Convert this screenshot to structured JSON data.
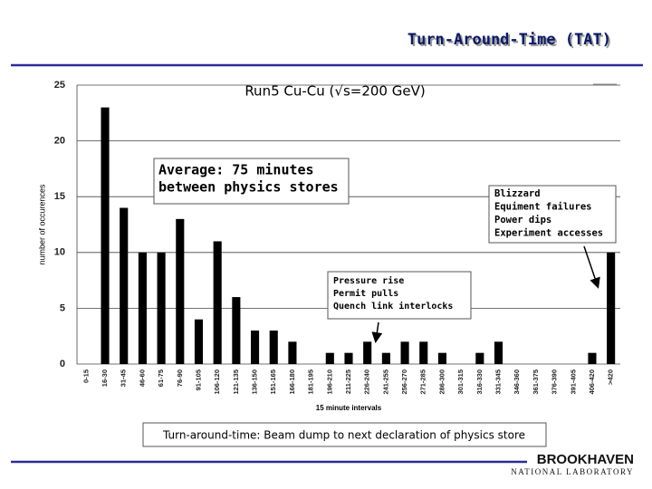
{
  "chart_data": {
    "type": "bar",
    "slide_title": "Turn-Around-Time (TAT)",
    "title": "Run5 Cu-Cu (√s=200 GeV)",
    "y_label": "number of occurences",
    "x_label": "15 minute intervals",
    "categories": [
      "0-15",
      "16-30",
      "31-45",
      "46-60",
      "61-75",
      "76-90",
      "91-105",
      "106-120",
      "121-135",
      "136-150",
      "151-165",
      "166-180",
      "181-195",
      "196-210",
      "211-225",
      "226-240",
      "241-255",
      "256-270",
      "271-285",
      "286-300",
      "301-315",
      "316-330",
      "331-345",
      "346-360",
      "361-375",
      "376-390",
      "391-405",
      "406-420",
      ">420"
    ],
    "values": [
      0,
      23,
      14,
      10,
      10,
      13,
      4,
      11,
      6,
      3,
      3,
      2,
      0,
      1,
      1,
      2,
      1,
      2,
      2,
      1,
      0,
      1,
      2,
      0,
      0,
      0,
      0,
      1,
      10
    ],
    "color": "#000000",
    "ylim": [
      0,
      25
    ],
    "yticks": [
      0,
      5,
      10,
      15,
      20,
      25
    ],
    "grid": true,
    "annotations": [
      {
        "lines": [
          "Average: 75 minutes",
          "between physics stores"
        ]
      },
      {
        "lines": [
          "Blizzard",
          "Equiment failures",
          "Power dips",
          "Experiment accesses"
        ]
      },
      {
        "lines": [
          "Pressure rise",
          "Permit pulls",
          "Quench link interlocks"
        ]
      }
    ],
    "footer": "Turn-around-time: Beam dump to next declaration of physics store",
    "logo": [
      "BROOKHAVEN",
      "NATIONAL LABORATORY"
    ]
  }
}
